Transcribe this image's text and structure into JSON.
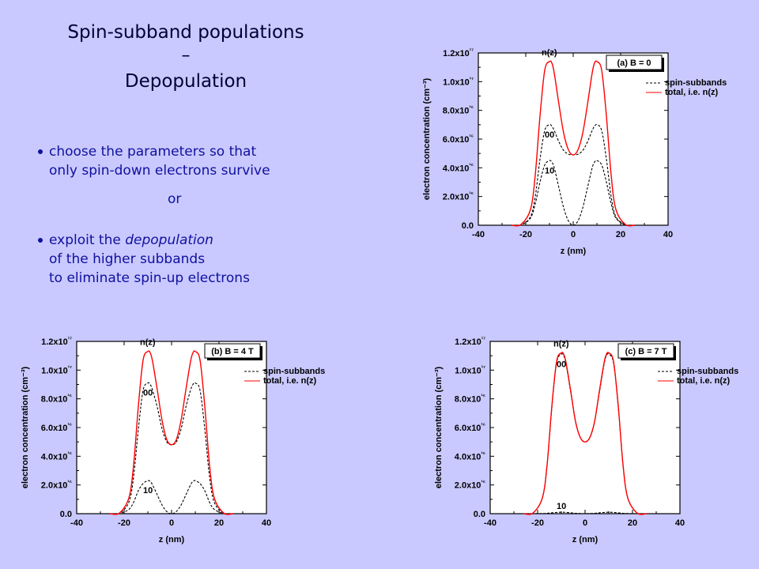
{
  "slide": {
    "title": "Spin-subband populations",
    "title_dash": "–",
    "subtitle": "Depopulation",
    "bullet1": {
      "line1": "choose the parameters so that",
      "line2": "only spin-down electrons survive"
    },
    "or": "or",
    "bullet2": {
      "line1_pre": "exploit the ",
      "line1_em": "depopulation",
      "line2": "of the higher subbands",
      "line3": "to eliminate spin-up electrons"
    }
  },
  "colors": {
    "background": "#c9c9ff",
    "total": "#ff0000",
    "subband": "#000000",
    "text": "#1010a0",
    "title": "#000038"
  },
  "chart_data": [
    {
      "type": "line",
      "panel_label": "(a) B = 0",
      "xlabel": "z (nm)",
      "ylabel": "electron concentration (cm⁻³)",
      "xlim": [
        -40,
        40
      ],
      "ylim": [
        0,
        1.2e+17
      ],
      "xticks": [
        "-40",
        "-20",
        "0",
        "20",
        "40"
      ],
      "yticks": [
        "0.0",
        "2.0x10¹⁶",
        "4.0x10¹⁶",
        "6.0x10¹⁶",
        "8.0x10¹⁶",
        "1.0x10¹⁷",
        "1.2x10¹⁷"
      ],
      "legend": [
        "spin-subbands",
        "total, i.e. n(z)"
      ],
      "annotations": [
        "n(z)",
        "00",
        "10"
      ],
      "x": [
        -26,
        -22,
        -18,
        -16,
        -14,
        -12,
        -10,
        -9,
        -8,
        -6,
        -4,
        -2,
        0,
        2,
        4,
        6,
        8,
        9,
        10,
        12,
        14,
        16,
        18,
        22,
        26
      ],
      "series": [
        {
          "name": "00",
          "values": [
            0,
            200000000000000.0,
            6000000000000000.0,
            2e+16,
            4.6e+16,
            6.6e+16,
            7e+16,
            6.9e+16,
            6.6e+16,
            5.8e+16,
            5.2e+16,
            4.95e+16,
            4.9e+16,
            4.95e+16,
            5.2e+16,
            5.8e+16,
            6.6e+16,
            6.9e+16,
            7e+16,
            6.6e+16,
            4.6e+16,
            2e+16,
            6000000000000000.0,
            200000000000000.0,
            0
          ]
        },
        {
          "name": "10",
          "values": [
            0,
            200000000000000.0,
            5000000000000000.0,
            1.5e+16,
            3e+16,
            4.2e+16,
            4.5e+16,
            4.4e+16,
            4e+16,
            2.6e+16,
            1.2e+16,
            3000000000000000.0,
            0,
            3000000000000000.0,
            1.2e+16,
            2.6e+16,
            4e+16,
            4.4e+16,
            4.5e+16,
            4.2e+16,
            3e+16,
            1.5e+16,
            5000000000000000.0,
            200000000000000.0,
            0
          ]
        },
        {
          "name": "total",
          "values": [
            0,
            500000000000000.0,
            1.1e+16,
            3.5e+16,
            7.6e+16,
            1.08e+17,
            1.14e+17,
            1.13e+17,
            1.06e+17,
            8.4e+16,
            6.4e+16,
            5.25e+16,
            4.9e+16,
            5.25e+16,
            6.4e+16,
            8.4e+16,
            1.06e+17,
            1.13e+17,
            1.14e+17,
            1.08e+17,
            7.6e+16,
            3.5e+16,
            1.1e+16,
            500000000000000.0,
            0
          ]
        }
      ]
    },
    {
      "type": "line",
      "panel_label": "(b) B = 4 T",
      "xlabel": "z (nm)",
      "ylabel": "electron concentration (cm⁻³)",
      "xlim": [
        -40,
        40
      ],
      "ylim": [
        0,
        1.2e+17
      ],
      "xticks": [
        "-40",
        "-20",
        "0",
        "20",
        "40"
      ],
      "yticks": [
        "0.0",
        "2.0x10¹⁶",
        "4.0x10¹⁶",
        "6.0x10¹⁶",
        "8.0x10¹⁶",
        "1.0x10¹⁷",
        "1.2x10¹⁷"
      ],
      "legend": [
        "spin-subbands",
        "total, i.e. n(z)"
      ],
      "annotations": [
        "n(z)",
        "00",
        "10"
      ],
      "x": [
        -26,
        -22,
        -18,
        -16,
        -14,
        -12,
        -10,
        -9,
        -8,
        -6,
        -4,
        -2,
        0,
        2,
        4,
        6,
        8,
        9,
        10,
        12,
        14,
        16,
        18,
        22,
        26
      ],
      "series": [
        {
          "name": "00",
          "values": [
            0,
            300000000000000.0,
            8000000000000000.0,
            2.6e+16,
            5.9e+16,
            8.6e+16,
            9.1e+16,
            9e+16,
            8.6e+16,
            7.4e+16,
            5.9e+16,
            5e+16,
            4.8e+16,
            5e+16,
            5.9e+16,
            7.4e+16,
            8.6e+16,
            9e+16,
            9.1e+16,
            8.6e+16,
            5.9e+16,
            2.6e+16,
            8000000000000000.0,
            300000000000000.0,
            0
          ]
        },
        {
          "name": "10",
          "values": [
            0,
            100000000000000.0,
            3000000000000000.0,
            8000000000000000.0,
            1.6e+16,
            2.1e+16,
            2.3e+16,
            2.25e+16,
            2e+16,
            1.3e+16,
            6000000000000000.0,
            1500000000000000.0,
            0,
            1500000000000000.0,
            6000000000000000.0,
            1.3e+16,
            2e+16,
            2.25e+16,
            2.3e+16,
            2.1e+16,
            1.6e+16,
            8000000000000000.0,
            3000000000000000.0,
            100000000000000.0,
            0
          ]
        },
        {
          "name": "total",
          "values": [
            0,
            400000000000000.0,
            1.1e+16,
            3.4e+16,
            7.5e+16,
            1.07e+17,
            1.13e+17,
            1.12e+17,
            1.06e+17,
            8.6e+16,
            6.5e+16,
            5.15e+16,
            4.8e+16,
            5.15e+16,
            6.5e+16,
            8.6e+16,
            1.06e+17,
            1.12e+17,
            1.13e+17,
            1.07e+17,
            7.5e+16,
            3.4e+16,
            1.1e+16,
            400000000000000.0,
            0
          ]
        }
      ]
    },
    {
      "type": "line",
      "panel_label": "(c) B = 7 T",
      "xlabel": "z (nm)",
      "ylabel": "electron concentration (cm⁻³)",
      "xlim": [
        -40,
        40
      ],
      "ylim": [
        0,
        1.2e+17
      ],
      "xticks": [
        "-40",
        "-20",
        "0",
        "20",
        "40"
      ],
      "yticks": [
        "0.0",
        "2.0x10¹⁶",
        "4.0x10¹⁶",
        "6.0x10¹⁶",
        "8.0x10¹⁶",
        "1.0x10¹⁷",
        "1.2x10¹⁷"
      ],
      "legend": [
        "spin-subbands",
        "total, i.e. n(z)"
      ],
      "annotations": [
        "n(z)",
        "00",
        "10"
      ],
      "x": [
        -26,
        -22,
        -18,
        -16,
        -14,
        -12,
        -10,
        -9,
        -8,
        -6,
        -4,
        -2,
        0,
        2,
        4,
        6,
        8,
        9,
        10,
        12,
        14,
        16,
        18,
        22,
        26
      ],
      "series": [
        {
          "name": "00",
          "values": [
            0,
            400000000000000.0,
            1.1e+16,
            3.4e+16,
            7.4e+16,
            1.05e+17,
            1.11e+17,
            1.1e+17,
            1.04e+17,
            8.4e+16,
            6.4e+16,
            5.3e+16,
            5e+16,
            5.3e+16,
            6.4e+16,
            8.4e+16,
            1.04e+17,
            1.1e+17,
            1.11e+17,
            1.05e+17,
            7.4e+16,
            3.4e+16,
            1.1e+16,
            400000000000000.0,
            0
          ]
        },
        {
          "name": "10",
          "values": [
            0,
            0,
            100000000000000.0,
            300000000000000.0,
            600000000000000.0,
            900000000000000.0,
            1000000000000000.0,
            1000000000000000.0,
            900000000000000.0,
            600000000000000.0,
            300000000000000.0,
            100000000000000.0,
            0,
            100000000000000.0,
            300000000000000.0,
            600000000000000.0,
            900000000000000.0,
            1000000000000000.0,
            1000000000000000.0,
            900000000000000.0,
            600000000000000.0,
            300000000000000.0,
            100000000000000.0,
            0,
            0
          ]
        },
        {
          "name": "total",
          "values": [
            0,
            400000000000000.0,
            1.1e+16,
            3.4e+16,
            7.5e+16,
            1.06e+17,
            1.12e+17,
            1.11e+17,
            1.05e+17,
            8.5e+16,
            6.4e+16,
            5.3e+16,
            5e+16,
            5.3e+16,
            6.4e+16,
            8.5e+16,
            1.05e+17,
            1.11e+17,
            1.12e+17,
            1.06e+17,
            7.5e+16,
            3.4e+16,
            1.1e+16,
            400000000000000.0,
            0
          ]
        }
      ]
    }
  ]
}
